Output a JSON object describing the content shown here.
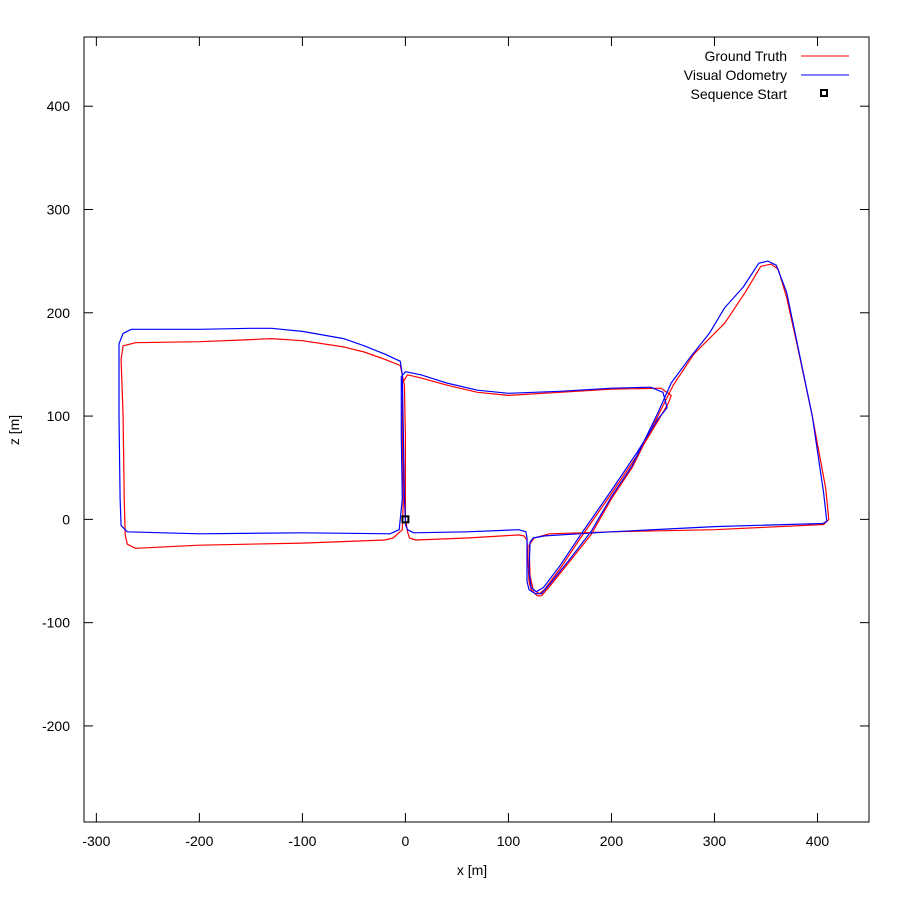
{
  "chart_data": {
    "type": "line",
    "title": "",
    "xlabel": "x [m]",
    "ylabel": "z [m]",
    "xlim": [
      -312,
      450
    ],
    "ylim": [
      -293,
      467
    ],
    "xticks": [
      -300,
      -200,
      -100,
      0,
      100,
      200,
      300,
      400
    ],
    "yticks": [
      -200,
      -100,
      0,
      100,
      200,
      300,
      400
    ],
    "grid": false,
    "legend_position": "top-right",
    "series": [
      {
        "name": "Ground Truth",
        "color": "#ff0000",
        "points": [
          [
            0,
            0
          ],
          [
            1,
            -5
          ],
          [
            2,
            -12
          ],
          [
            4,
            -18
          ],
          [
            10,
            -20
          ],
          [
            60,
            -18
          ],
          [
            110,
            -15
          ],
          [
            115,
            -16
          ],
          [
            118,
            -20
          ],
          [
            119,
            -40
          ],
          [
            120,
            -60
          ],
          [
            122,
            -68
          ],
          [
            128,
            -74
          ],
          [
            132,
            -74
          ],
          [
            140,
            -65
          ],
          [
            160,
            -40
          ],
          [
            180,
            -15
          ],
          [
            200,
            20
          ],
          [
            220,
            50
          ],
          [
            245,
            100
          ],
          [
            260,
            130
          ],
          [
            280,
            160
          ],
          [
            310,
            190
          ],
          [
            330,
            220
          ],
          [
            345,
            245
          ],
          [
            355,
            247
          ],
          [
            362,
            242
          ],
          [
            370,
            215
          ],
          [
            380,
            170
          ],
          [
            395,
            100
          ],
          [
            408,
            30
          ],
          [
            411,
            0
          ],
          [
            406,
            -5
          ],
          [
            300,
            -10
          ],
          [
            200,
            -12
          ],
          [
            140,
            -14
          ],
          [
            125,
            -18
          ],
          [
            120,
            -25
          ],
          [
            121,
            -55
          ],
          [
            124,
            -68
          ],
          [
            130,
            -72
          ],
          [
            135,
            -68
          ],
          [
            150,
            -48
          ],
          [
            170,
            -18
          ],
          [
            200,
            25
          ],
          [
            225,
            62
          ],
          [
            245,
            95
          ],
          [
            255,
            112
          ],
          [
            258,
            120
          ],
          [
            248,
            127
          ],
          [
            200,
            126
          ],
          [
            150,
            123
          ],
          [
            100,
            120
          ],
          [
            70,
            123
          ],
          [
            40,
            130
          ],
          [
            15,
            137
          ],
          [
            2,
            140
          ],
          [
            -3,
            132
          ],
          [
            -3,
            80
          ],
          [
            -2,
            20
          ],
          [
            -3,
            -10
          ],
          [
            -12,
            -18
          ],
          [
            -20,
            -20
          ],
          [
            -100,
            -23
          ],
          [
            -200,
            -25
          ],
          [
            -262,
            -28
          ],
          [
            -270,
            -24
          ],
          [
            -272,
            -15
          ],
          [
            -273,
            20
          ],
          [
            -274,
            100
          ],
          [
            -276,
            155
          ],
          [
            -274,
            168
          ],
          [
            -262,
            171
          ],
          [
            -200,
            172
          ],
          [
            -150,
            174
          ],
          [
            -130,
            175
          ],
          [
            -100,
            173
          ],
          [
            -60,
            167
          ],
          [
            -40,
            162
          ],
          [
            -20,
            155
          ],
          [
            -5,
            149
          ],
          [
            -1,
            130
          ],
          [
            0,
            80
          ],
          [
            0,
            20
          ],
          [
            0,
            0
          ]
        ]
      },
      {
        "name": "Visual Odometry",
        "color": "#0000ff",
        "points": [
          [
            0,
            0
          ],
          [
            0,
            -5
          ],
          [
            2,
            -10
          ],
          [
            8,
            -13
          ],
          [
            60,
            -12
          ],
          [
            110,
            -10
          ],
          [
            117,
            -12
          ],
          [
            118,
            -18
          ],
          [
            118,
            -40
          ],
          [
            118,
            -60
          ],
          [
            120,
            -68
          ],
          [
            126,
            -72
          ],
          [
            132,
            -72
          ],
          [
            140,
            -63
          ],
          [
            160,
            -38
          ],
          [
            180,
            -12
          ],
          [
            200,
            22
          ],
          [
            220,
            52
          ],
          [
            245,
            103
          ],
          [
            258,
            132
          ],
          [
            275,
            155
          ],
          [
            295,
            180
          ],
          [
            310,
            205
          ],
          [
            328,
            225
          ],
          [
            343,
            248
          ],
          [
            352,
            250
          ],
          [
            360,
            246
          ],
          [
            370,
            220
          ],
          [
            380,
            172
          ],
          [
            395,
            100
          ],
          [
            406,
            25
          ],
          [
            409,
            -2
          ],
          [
            405,
            -4
          ],
          [
            300,
            -7
          ],
          [
            200,
            -12
          ],
          [
            135,
            -16
          ],
          [
            124,
            -18
          ],
          [
            121,
            -22
          ],
          [
            120,
            -50
          ],
          [
            122,
            -66
          ],
          [
            127,
            -70
          ],
          [
            134,
            -66
          ],
          [
            150,
            -45
          ],
          [
            170,
            -15
          ],
          [
            200,
            28
          ],
          [
            225,
            65
          ],
          [
            245,
            97
          ],
          [
            254,
            108
          ],
          [
            250,
            123
          ],
          [
            238,
            128
          ],
          [
            200,
            127
          ],
          [
            150,
            124
          ],
          [
            100,
            122
          ],
          [
            70,
            125
          ],
          [
            40,
            132
          ],
          [
            15,
            140
          ],
          [
            0,
            143
          ],
          [
            -4,
            138
          ],
          [
            -4,
            80
          ],
          [
            -3,
            20
          ],
          [
            -6,
            -10
          ],
          [
            -15,
            -14
          ],
          [
            -100,
            -13
          ],
          [
            -200,
            -14
          ],
          [
            -270,
            -12
          ],
          [
            -276,
            -6
          ],
          [
            -277,
            20
          ],
          [
            -278,
            100
          ],
          [
            -278,
            170
          ],
          [
            -274,
            180
          ],
          [
            -266,
            184
          ],
          [
            -200,
            184
          ],
          [
            -150,
            185
          ],
          [
            -130,
            185
          ],
          [
            -100,
            182
          ],
          [
            -60,
            175
          ],
          [
            -40,
            168
          ],
          [
            -20,
            160
          ],
          [
            -5,
            153
          ],
          [
            -3,
            140
          ],
          [
            -2,
            80
          ],
          [
            -1,
            20
          ],
          [
            0,
            0
          ]
        ]
      }
    ],
    "markers": [
      {
        "name": "Sequence Start",
        "x": 0,
        "y": 0,
        "symbol": "open-square",
        "color": "#000000"
      }
    ]
  }
}
